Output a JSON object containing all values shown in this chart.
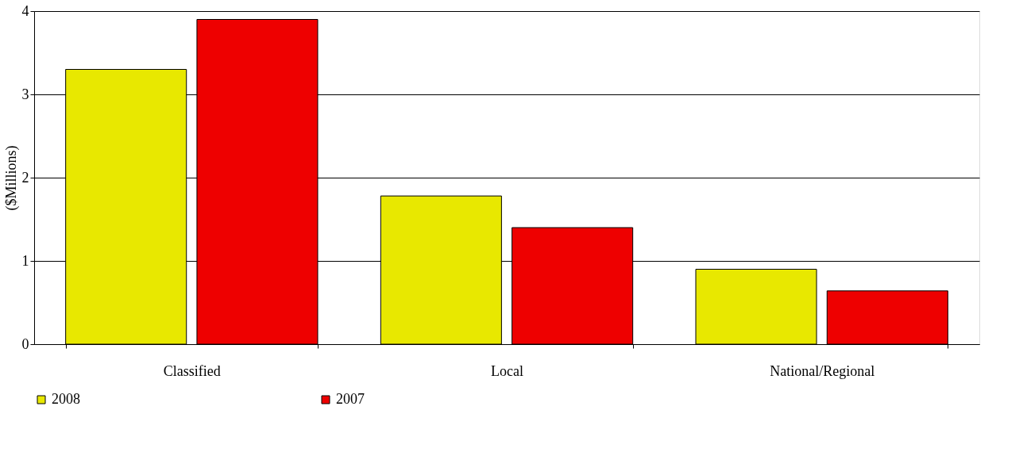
{
  "chart_data": {
    "type": "bar",
    "ylabel": "($Millions)",
    "categories": [
      "Classified",
      "Local",
      "National/Regional"
    ],
    "series": [
      {
        "name": "2008",
        "color": "#e8e800",
        "values": [
          3.3,
          1.78,
          0.9
        ]
      },
      {
        "name": "2007",
        "color": "#ee0000",
        "values": [
          3.9,
          1.4,
          0.64
        ]
      }
    ],
    "ylim": [
      0,
      4
    ],
    "yticks": [
      0,
      1,
      2,
      3,
      4
    ],
    "grid": "y",
    "legend": "bottom"
  }
}
